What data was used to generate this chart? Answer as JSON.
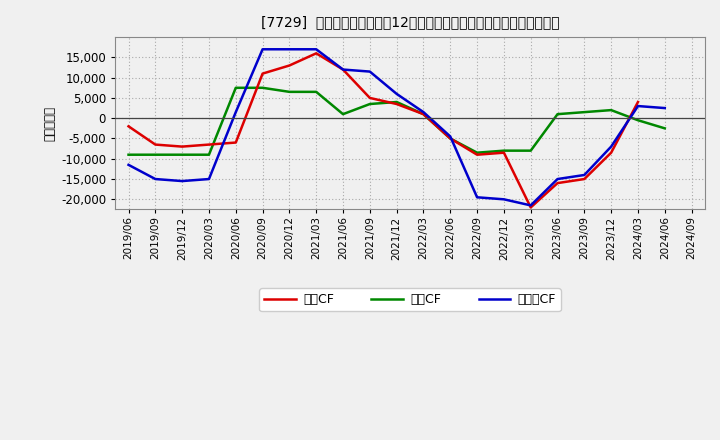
{
  "title": "[7729]  キャッシュフローの12か月移動合計の対前年同期増減額の推移",
  "ylabel": "（百万円）",
  "background_color": "#f0f0f0",
  "plot_bg_color": "#f0f0f0",
  "grid_color": "#aaaaaa",
  "x_labels": [
    "2019/06",
    "2019/09",
    "2019/12",
    "2020/03",
    "2020/06",
    "2020/09",
    "2020/12",
    "2021/03",
    "2021/06",
    "2021/09",
    "2021/12",
    "2022/03",
    "2022/06",
    "2022/09",
    "2022/12",
    "2023/03",
    "2023/06",
    "2023/09",
    "2023/12",
    "2024/03",
    "2024/06",
    "2024/09"
  ],
  "eigyo_cf": [
    -2000,
    -6500,
    -7000,
    -6500,
    -6000,
    11000,
    13000,
    16000,
    12000,
    5000,
    3500,
    1000,
    -5000,
    -9000,
    -8500,
    -22000,
    -16000,
    -15000,
    -8500,
    4000,
    null,
    null
  ],
  "toshi_cf": [
    -9000,
    -9000,
    -9000,
    -9000,
    7500,
    7500,
    6500,
    6500,
    1000,
    3500,
    4000,
    1000,
    -5000,
    -8500,
    -8000,
    -8000,
    1000,
    1500,
    2000,
    -500,
    -2500,
    null
  ],
  "free_cf": [
    -11500,
    -15000,
    -15500,
    -15000,
    1500,
    17000,
    17000,
    17000,
    12000,
    11500,
    6000,
    1500,
    -4500,
    -19500,
    -20000,
    -21500,
    -15000,
    -14000,
    -7000,
    3000,
    2500,
    null
  ],
  "eigyo_color": "#dd0000",
  "toshi_color": "#008800",
  "free_color": "#0000cc",
  "ylim": [
    -22500,
    20000
  ],
  "yticks": [
    -20000,
    -15000,
    -10000,
    -5000,
    0,
    5000,
    10000,
    15000
  ],
  "legend_labels": [
    "営業CF",
    "投資CF",
    "フリーCF"
  ]
}
